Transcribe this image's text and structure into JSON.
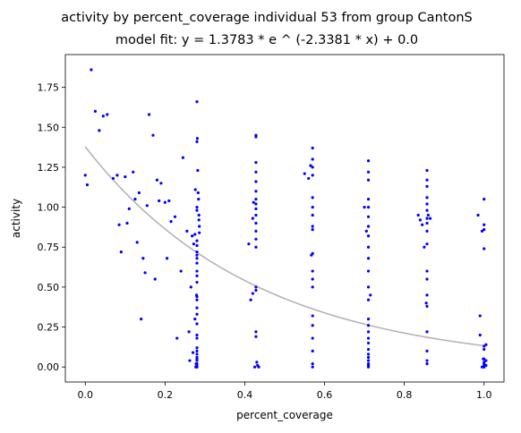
{
  "chart_data": {
    "type": "scatter",
    "title": "activity by percent_coverage individual 53 from group CantonS",
    "subtitle": "model fit: y = 1.3783 * e ^ (-2.3381 * x) + 0.0",
    "xlabel": "percent_coverage",
    "ylabel": "activity",
    "xlim": [
      -0.05,
      1.05
    ],
    "ylim": [
      -0.094,
      1.955
    ],
    "xticks": [
      0.0,
      0.2,
      0.4,
      0.6,
      0.8,
      1.0
    ],
    "xtick_labels": [
      "0.0",
      "0.2",
      "0.4",
      "0.6",
      "0.8",
      "1.0"
    ],
    "yticks": [
      0.0,
      0.25,
      0.5,
      0.75,
      1.0,
      1.25,
      1.5,
      1.75
    ],
    "ytick_labels": [
      "0.00",
      "0.25",
      "0.50",
      "0.75",
      "1.00",
      "1.25",
      "1.50",
      "1.75"
    ],
    "grid": false,
    "legend": "none",
    "colors": {
      "points": "#0000ff",
      "fit_line": "#b0b0b0"
    },
    "fit": {
      "a": 1.3783,
      "b": -2.3381,
      "c": 0.0
    },
    "points": {
      "x": [
        0.0,
        0.005,
        0.015,
        0.025,
        0.035,
        0.045,
        0.055,
        0.07,
        0.08,
        0.085,
        0.09,
        0.1,
        0.105,
        0.11,
        0.12,
        0.125,
        0.13,
        0.135,
        0.14,
        0.145,
        0.15,
        0.155,
        0.16,
        0.17,
        0.175,
        0.18,
        0.185,
        0.19,
        0.2,
        0.205,
        0.21,
        0.215,
        0.225,
        0.23,
        0.24,
        0.245,
        0.255,
        0.26,
        0.262,
        0.265,
        0.268,
        0.27,
        0.272,
        0.275,
        0.275,
        0.276,
        0.277,
        0.278,
        0.279,
        0.28,
        0.28,
        0.281,
        0.282,
        0.283,
        0.284,
        0.285,
        0.285,
        0.286,
        0.286,
        0.28,
        0.28,
        0.28,
        0.28,
        0.28,
        0.28,
        0.28,
        0.28,
        0.28,
        0.28,
        0.28,
        0.28,
        0.28,
        0.28,
        0.28,
        0.28,
        0.28,
        0.28,
        0.28,
        0.28,
        0.28,
        0.28,
        0.28,
        0.28,
        0.28,
        0.28,
        0.28,
        0.28,
        0.41,
        0.415,
        0.42,
        0.42,
        0.422,
        0.425,
        0.428,
        0.428,
        0.428,
        0.428,
        0.428,
        0.428,
        0.428,
        0.428,
        0.428,
        0.428,
        0.428,
        0.428,
        0.428,
        0.428,
        0.428,
        0.428,
        0.428,
        0.428,
        0.43,
        0.432,
        0.435,
        0.55,
        0.56,
        0.565,
        0.567,
        0.57,
        0.57,
        0.57,
        0.57,
        0.57,
        0.57,
        0.57,
        0.57,
        0.57,
        0.57,
        0.57,
        0.57,
        0.57,
        0.57,
        0.57,
        0.57,
        0.57,
        0.57,
        0.57,
        0.7,
        0.705,
        0.71,
        0.71,
        0.71,
        0.71,
        0.71,
        0.71,
        0.71,
        0.71,
        0.71,
        0.71,
        0.71,
        0.71,
        0.71,
        0.71,
        0.71,
        0.71,
        0.71,
        0.71,
        0.71,
        0.71,
        0.71,
        0.71,
        0.71,
        0.71,
        0.71,
        0.715,
        0.835,
        0.84,
        0.845,
        0.85,
        0.855,
        0.857,
        0.857,
        0.857,
        0.857,
        0.857,
        0.857,
        0.857,
        0.857,
        0.857,
        0.857,
        0.857,
        0.857,
        0.857,
        0.857,
        0.857,
        0.857,
        0.857,
        0.857,
        0.86,
        0.865,
        0.985,
        0.99,
        0.99,
        0.995,
        0.995,
        0.998,
        1.0,
        1.0,
        1.0,
        1.0,
        1.0,
        1.0,
        1.0,
        1.0,
        1.0,
        1.0,
        1.0,
        1.0,
        1.005,
        1.005,
        1.005
      ],
      "y": [
        1.2,
        1.14,
        1.86,
        1.6,
        1.48,
        1.57,
        1.58,
        1.18,
        1.2,
        0.89,
        0.72,
        1.19,
        0.9,
        0.99,
        1.22,
        1.05,
        0.78,
        1.09,
        0.3,
        0.68,
        0.59,
        1.01,
        1.58,
        1.45,
        0.55,
        1.17,
        1.04,
        1.15,
        1.03,
        0.68,
        1.04,
        0.91,
        0.94,
        0.18,
        0.6,
        1.31,
        0.85,
        0.22,
        0.04,
        0.5,
        0.82,
        0.09,
        0.77,
        0.3,
        0.83,
        1.11,
        0.0,
        0.02,
        0.45,
        1.66,
        1.41,
        1.43,
        1.23,
        1.09,
        1.05,
        0.95,
        0.92,
        0.88,
        0.84,
        1.0,
        0.98,
        0.79,
        0.76,
        0.72,
        0.7,
        0.68,
        0.65,
        0.6,
        0.57,
        0.53,
        0.44,
        0.42,
        0.37,
        0.33,
        0.27,
        0.2,
        0.18,
        0.12,
        0.1,
        0.08,
        0.06,
        0.05,
        0.04,
        0.02,
        0.01,
        0.0,
        0.0,
        0.77,
        0.42,
        0.93,
        0.46,
        1.03,
        0.0,
        1.45,
        1.44,
        1.28,
        1.22,
        1.16,
        1.1,
        1.05,
        1.02,
        0.99,
        0.95,
        0.9,
        0.85,
        0.8,
        0.75,
        0.5,
        0.48,
        0.22,
        0.19,
        0.03,
        0.01,
        0.0,
        1.21,
        1.18,
        1.26,
        0.7,
        1.37,
        1.3,
        1.25,
        1.2,
        1.06,
        1.0,
        0.95,
        0.88,
        0.86,
        0.71,
        0.6,
        0.55,
        0.5,
        0.32,
        0.26,
        0.18,
        0.1,
        0.02,
        0.0,
        1.0,
        0.85,
        1.29,
        1.22,
        1.17,
        1.05,
        1.0,
        0.94,
        0.88,
        0.82,
        0.75,
        0.68,
        0.6,
        0.5,
        0.42,
        0.3,
        0.26,
        0.22,
        0.18,
        0.15,
        0.11,
        0.08,
        0.06,
        0.04,
        0.02,
        0.01,
        0.0,
        0.45,
        0.95,
        0.92,
        0.89,
        0.75,
        0.4,
        1.23,
        1.17,
        1.13,
        1.06,
        1.02,
        0.98,
        0.93,
        0.9,
        0.85,
        0.77,
        0.6,
        0.55,
        0.45,
        0.38,
        0.22,
        0.1,
        0.04,
        0.02,
        0.95,
        0.93,
        0.95,
        0.2,
        0.32,
        0.85,
        0.0,
        0.05,
        1.05,
        0.89,
        0.86,
        0.74,
        0.13,
        0.11,
        0.05,
        0.03,
        0.02,
        0.01,
        0.0,
        0.0,
        0.14,
        0.04,
        0.01
      ]
    }
  }
}
